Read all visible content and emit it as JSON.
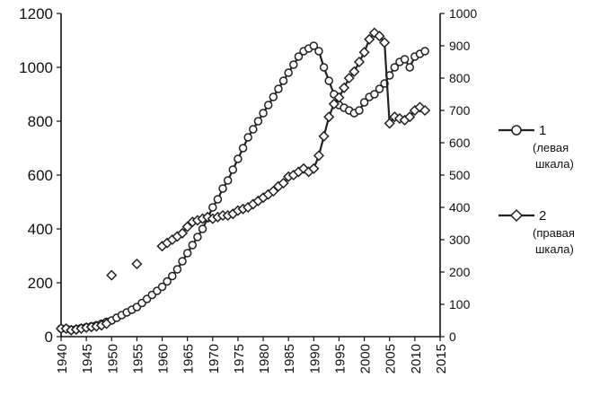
{
  "chart_data": {
    "type": "line",
    "title": "",
    "xlabel": "",
    "ylabel_left": "",
    "ylabel_right": "",
    "grid": false,
    "legend_position": "right",
    "xlim": [
      1940,
      2015
    ],
    "ylim_left": [
      0,
      1200
    ],
    "ylim_right": [
      0,
      1000
    ],
    "x_ticks": [
      "1940",
      "1945",
      "1950",
      "1955",
      "1960",
      "1965",
      "1970",
      "1975",
      "1980",
      "1985",
      "1990",
      "1995",
      "2000",
      "2005",
      "2010",
      "2015"
    ],
    "y_ticks_left": [
      "0",
      "200",
      "400",
      "600",
      "800",
      "1000",
      "1200"
    ],
    "y_ticks_right": [
      "0",
      "100",
      "200",
      "300",
      "400",
      "500",
      "600",
      "700",
      "800",
      "900",
      "1000"
    ],
    "series": [
      {
        "name": "1",
        "legend_sub1": "(левая",
        "legend_sub2": "шкала)",
        "axis": "left",
        "marker": "circle",
        "color": "#222222",
        "x": [
          1940,
          1941,
          1942,
          1943,
          1944,
          1945,
          1946,
          1947,
          1948,
          1949,
          1950,
          1951,
          1952,
          1953,
          1954,
          1955,
          1956,
          1957,
          1958,
          1959,
          1960,
          1961,
          1962,
          1963,
          1964,
          1965,
          1966,
          1967,
          1968,
          1969,
          1970,
          1971,
          1972,
          1973,
          1974,
          1975,
          1976,
          1977,
          1978,
          1979,
          1980,
          1981,
          1982,
          1983,
          1984,
          1985,
          1986,
          1987,
          1988,
          1989,
          1990,
          1991,
          1992,
          1993,
          1994,
          1995,
          1996,
          1997,
          1998,
          1999,
          2000,
          2001,
          2002,
          2003,
          2004,
          2005,
          2006,
          2007,
          2008,
          2009,
          2010,
          2011,
          2012
        ],
        "y": [
          30,
          30,
          25,
          28,
          32,
          35,
          38,
          42,
          48,
          55,
          60,
          70,
          80,
          90,
          100,
          110,
          125,
          140,
          155,
          170,
          185,
          205,
          225,
          250,
          280,
          310,
          340,
          370,
          400,
          440,
          480,
          510,
          550,
          580,
          620,
          660,
          700,
          740,
          770,
          800,
          830,
          860,
          890,
          920,
          950,
          980,
          1010,
          1040,
          1060,
          1070,
          1080,
          1060,
          1000,
          950,
          900,
          860,
          850,
          840,
          830,
          840,
          870,
          890,
          900,
          920,
          940,
          970,
          1000,
          1020,
          1030,
          1000,
          1040,
          1050,
          1060
        ]
      },
      {
        "name": "2",
        "legend_sub1": "(правая",
        "legend_sub2": "шкала)",
        "axis": "right",
        "marker": "diamond",
        "color": "#222222",
        "x": [
          1940,
          1941,
          1942,
          1943,
          1944,
          1945,
          1946,
          1947,
          1948,
          1949,
          1950,
          1955,
          1960,
          1961,
          1962,
          1963,
          1964,
          1965,
          1966,
          1967,
          1968,
          1969,
          1970,
          1971,
          1972,
          1973,
          1974,
          1975,
          1976,
          1977,
          1978,
          1979,
          1980,
          1981,
          1982,
          1983,
          1984,
          1985,
          1986,
          1987,
          1988,
          1989,
          1990,
          1991,
          1992,
          1993,
          1994,
          1995,
          1996,
          1997,
          1998,
          1999,
          2000,
          2001,
          2002,
          2003,
          2004,
          2005,
          2006,
          2007,
          2008,
          2009,
          2010,
          2011,
          2012
        ],
        "y": [
          25,
          25,
          20,
          22,
          25,
          28,
          30,
          32,
          35,
          40,
          190,
          225,
          280,
          290,
          300,
          310,
          320,
          340,
          355,
          360,
          365,
          370,
          365,
          370,
          375,
          375,
          380,
          390,
          395,
          400,
          410,
          420,
          430,
          440,
          450,
          465,
          475,
          495,
          500,
          510,
          520,
          510,
          520,
          560,
          620,
          680,
          720,
          740,
          770,
          800,
          820,
          850,
          880,
          920,
          940,
          930,
          910,
          660,
          680,
          675,
          670,
          680,
          700,
          710,
          700
        ]
      }
    ]
  }
}
